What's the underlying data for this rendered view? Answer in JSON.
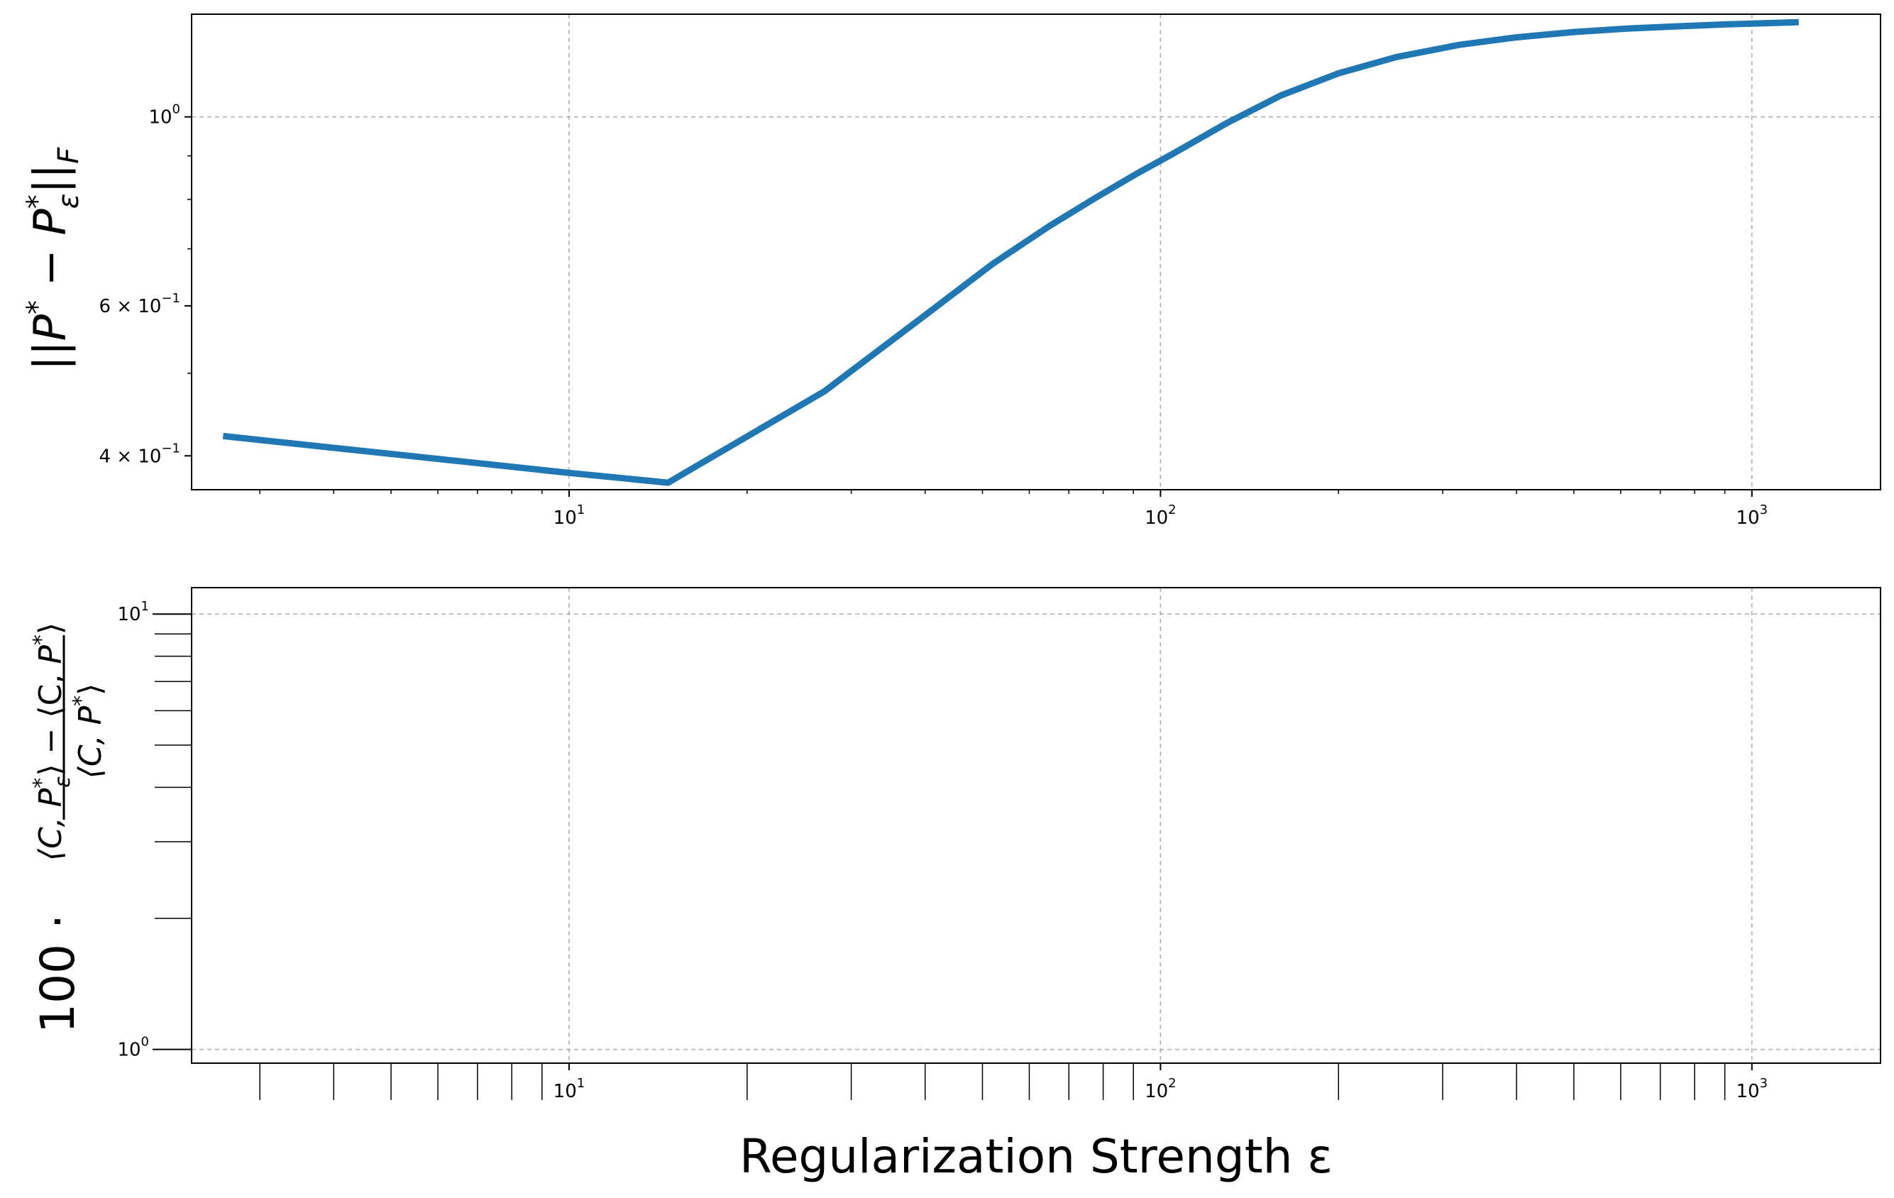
{
  "chart_data": [
    {
      "type": "line",
      "xscale": "log",
      "yscale": "log",
      "xlim": [
        2.3,
        1650
      ],
      "ylim": [
        0.365,
        1.32
      ],
      "grid": true,
      "ylabel": "||P* − P*ε||F",
      "x_ticks": [
        {
          "value": 10,
          "base": "10",
          "exp": "1"
        },
        {
          "value": 100,
          "base": "10",
          "exp": "2"
        },
        {
          "value": 1000,
          "base": "10",
          "exp": "3"
        }
      ],
      "y_ticks": [
        {
          "value": 0.4,
          "base": "4 × 10",
          "exp": "−1"
        },
        {
          "value": 0.6,
          "base": "6 × 10",
          "exp": "−1"
        },
        {
          "value": 1.0,
          "base": "10",
          "exp": "0"
        }
      ],
      "series": [
        {
          "color": "#1f77b4",
          "x": [
            2.6,
            10,
            14.7,
            27,
            40,
            52,
            65,
            78,
            91,
            104,
            130,
            160,
            200,
            250,
            320,
            400,
            500,
            620,
            760,
            900,
            1050,
            1200
          ],
          "y": [
            0.422,
            0.382,
            0.372,
            0.476,
            0.585,
            0.672,
            0.745,
            0.805,
            0.857,
            0.902,
            0.985,
            1.06,
            1.125,
            1.175,
            1.215,
            1.24,
            1.258,
            1.27,
            1.278,
            1.284,
            1.288,
            1.292
          ]
        }
      ]
    },
    {
      "type": "line",
      "xscale": "log",
      "yscale": "log",
      "xlim": [
        2.3,
        1650
      ],
      "ylim": [
        0.93,
        11.5
      ],
      "grid": true,
      "xlabel": "Regularization Strength ε",
      "ylabel": "100 · (⟨C,P*ε⟩ − ⟨C,P*⟩) / ⟨C,P*⟩",
      "x_ticks": [
        {
          "value": 10,
          "base": "10",
          "exp": "1"
        },
        {
          "value": 100,
          "base": "10",
          "exp": "2"
        },
        {
          "value": 1000,
          "base": "10",
          "exp": "3"
        }
      ],
      "y_ticks": [
        {
          "value": 1,
          "base": "10",
          "exp": "0"
        },
        {
          "value": 10,
          "base": "10",
          "exp": "1"
        }
      ],
      "series": []
    }
  ]
}
